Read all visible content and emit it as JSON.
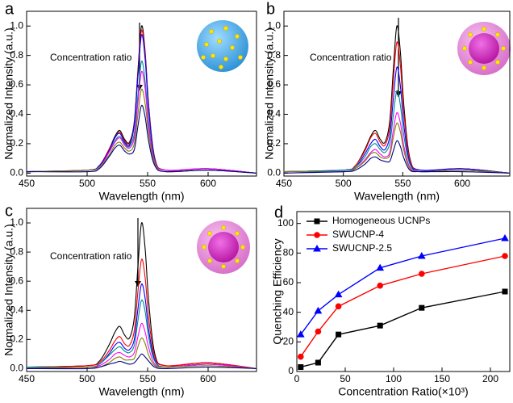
{
  "chart_data": [
    {
      "type": "line",
      "panel_label": "a",
      "x_label": "Wavelength (nm)",
      "y_label": "Normalized Intensity (a.u.)",
      "annotation": "Concentration ratio",
      "xlim": [
        450,
        640
      ],
      "ylim": [
        -0.02,
        1.1
      ],
      "xticks": [
        450,
        500,
        550,
        600
      ],
      "yticks": [
        {
          "value": 0,
          "label": "0.0"
        },
        0.2,
        0.4,
        0.6,
        0.8,
        {
          "value": 1,
          "label": "1.0"
        }
      ],
      "x": [
        450,
        500,
        510,
        518,
        523,
        527,
        531,
        535,
        539,
        542,
        545,
        548,
        551,
        556,
        565,
        600,
        640
      ],
      "series": [
        {
          "color": "#000000",
          "values": [
            0.01,
            0.02,
            0.05,
            0.16,
            0.25,
            0.29,
            0.23,
            0.21,
            0.35,
            0.7,
            1.0,
            0.82,
            0.45,
            0.1,
            0.02,
            0.03,
            0.0
          ]
        },
        {
          "color": "#ff0000",
          "values": [
            0.01,
            0.02,
            0.05,
            0.16,
            0.24,
            0.28,
            0.22,
            0.2,
            0.34,
            0.68,
            0.97,
            0.8,
            0.44,
            0.1,
            0.02,
            0.03,
            0.0
          ]
        },
        {
          "color": "#0000ff",
          "values": [
            0.01,
            0.02,
            0.05,
            0.15,
            0.24,
            0.27,
            0.21,
            0.19,
            0.33,
            0.66,
            0.94,
            0.77,
            0.42,
            0.09,
            0.02,
            0.03,
            0.0
          ]
        },
        {
          "color": "#008b8b",
          "values": [
            0.01,
            0.02,
            0.04,
            0.14,
            0.22,
            0.25,
            0.2,
            0.18,
            0.27,
            0.53,
            0.76,
            0.62,
            0.34,
            0.08,
            0.02,
            0.03,
            0.0
          ]
        },
        {
          "color": "#ff00ff",
          "values": [
            0.01,
            0.02,
            0.04,
            0.14,
            0.21,
            0.24,
            0.19,
            0.17,
            0.24,
            0.48,
            0.69,
            0.57,
            0.31,
            0.07,
            0.02,
            0.03,
            0.0
          ]
        },
        {
          "color": "#808000",
          "values": [
            0.01,
            0.02,
            0.04,
            0.12,
            0.19,
            0.21,
            0.17,
            0.15,
            0.2,
            0.4,
            0.57,
            0.47,
            0.26,
            0.06,
            0.01,
            0.02,
            0.0
          ]
        },
        {
          "color": "#000080",
          "values": [
            0.01,
            0.01,
            0.03,
            0.11,
            0.17,
            0.19,
            0.15,
            0.13,
            0.16,
            0.32,
            0.46,
            0.38,
            0.21,
            0.05,
            0.01,
            0.02,
            0.0
          ]
        }
      ]
    },
    {
      "type": "line",
      "panel_label": "b",
      "x_label": "Wavelength (nm)",
      "y_label": "Normalized Intensity (a.u.)",
      "annotation": "Concentration ratio",
      "xlim": [
        450,
        640
      ],
      "ylim": [
        -0.02,
        1.1
      ],
      "xticks": [
        450,
        500,
        550,
        600
      ],
      "yticks": [
        {
          "value": 0,
          "label": "0.0"
        },
        0.2,
        0.4,
        0.6,
        0.8,
        {
          "value": 1,
          "label": "1.0"
        }
      ],
      "x": [
        450,
        500,
        510,
        518,
        523,
        527,
        531,
        535,
        539,
        542,
        545,
        548,
        551,
        556,
        565,
        600,
        640
      ],
      "series": [
        {
          "color": "#000000",
          "values": [
            0.01,
            0.02,
            0.05,
            0.16,
            0.25,
            0.29,
            0.23,
            0.21,
            0.35,
            0.7,
            1.0,
            0.82,
            0.45,
            0.1,
            0.02,
            0.03,
            0.0
          ]
        },
        {
          "color": "#ff0000",
          "values": [
            0.01,
            0.02,
            0.05,
            0.15,
            0.24,
            0.27,
            0.21,
            0.19,
            0.31,
            0.62,
            0.89,
            0.73,
            0.4,
            0.09,
            0.02,
            0.03,
            0.0
          ]
        },
        {
          "color": "#0000ff",
          "values": [
            0.01,
            0.02,
            0.04,
            0.13,
            0.2,
            0.23,
            0.18,
            0.16,
            0.25,
            0.5,
            0.72,
            0.59,
            0.32,
            0.07,
            0.02,
            0.03,
            0.0
          ]
        },
        {
          "color": "#008b8b",
          "values": [
            0.01,
            0.02,
            0.04,
            0.11,
            0.18,
            0.2,
            0.16,
            0.14,
            0.2,
            0.39,
            0.56,
            0.46,
            0.25,
            0.06,
            0.01,
            0.02,
            0.0
          ]
        },
        {
          "color": "#ff00ff",
          "values": [
            0.01,
            0.01,
            0.03,
            0.09,
            0.14,
            0.16,
            0.13,
            0.11,
            0.14,
            0.29,
            0.41,
            0.34,
            0.18,
            0.04,
            0.01,
            0.02,
            0.0
          ]
        },
        {
          "color": "#808000",
          "values": [
            0.01,
            0.01,
            0.03,
            0.08,
            0.13,
            0.14,
            0.11,
            0.1,
            0.12,
            0.24,
            0.34,
            0.28,
            0.15,
            0.03,
            0.01,
            0.02,
            0.0
          ]
        },
        {
          "color": "#000080",
          "values": [
            0.0,
            0.01,
            0.02,
            0.06,
            0.1,
            0.11,
            0.09,
            0.08,
            0.08,
            0.15,
            0.22,
            0.18,
            0.1,
            0.02,
            0.01,
            0.01,
            0.0
          ]
        }
      ]
    },
    {
      "type": "line",
      "panel_label": "c",
      "x_label": "Wavelength (nm)",
      "y_label": "Normalized Intensity (a.u.)",
      "annotation": "Concentration ratio",
      "xlim": [
        450,
        640
      ],
      "ylim": [
        -0.02,
        1.1
      ],
      "xticks": [
        450,
        500,
        550,
        600
      ],
      "yticks": [
        {
          "value": 0,
          "label": "0.0"
        },
        0.2,
        0.4,
        0.6,
        0.8,
        {
          "value": 1,
          "label": "1.0"
        }
      ],
      "x": [
        450,
        500,
        510,
        518,
        523,
        527,
        531,
        535,
        539,
        542,
        545,
        548,
        551,
        556,
        565,
        600,
        640
      ],
      "series": [
        {
          "color": "#000000",
          "values": [
            0.01,
            0.02,
            0.05,
            0.16,
            0.25,
            0.29,
            0.23,
            0.21,
            0.35,
            0.7,
            1.0,
            0.82,
            0.45,
            0.1,
            0.02,
            0.04,
            0.0
          ]
        },
        {
          "color": "#ff0000",
          "values": [
            0.01,
            0.02,
            0.04,
            0.12,
            0.19,
            0.22,
            0.17,
            0.16,
            0.26,
            0.53,
            0.75,
            0.62,
            0.34,
            0.08,
            0.02,
            0.04,
            0.0
          ]
        },
        {
          "color": "#0000ff",
          "values": [
            0.01,
            0.01,
            0.03,
            0.1,
            0.16,
            0.18,
            0.14,
            0.13,
            0.2,
            0.41,
            0.58,
            0.48,
            0.26,
            0.06,
            0.01,
            0.03,
            0.0
          ]
        },
        {
          "color": "#008b8b",
          "values": [
            0.01,
            0.01,
            0.03,
            0.09,
            0.13,
            0.15,
            0.12,
            0.11,
            0.16,
            0.33,
            0.47,
            0.39,
            0.21,
            0.05,
            0.01,
            0.03,
            0.0
          ]
        },
        {
          "color": "#ff00ff",
          "values": [
            0.0,
            0.01,
            0.02,
            0.06,
            0.1,
            0.11,
            0.09,
            0.08,
            0.11,
            0.22,
            0.31,
            0.25,
            0.14,
            0.03,
            0.01,
            0.03,
            0.0
          ]
        },
        {
          "color": "#808000",
          "values": [
            0.0,
            0.01,
            0.01,
            0.04,
            0.07,
            0.08,
            0.06,
            0.06,
            0.07,
            0.15,
            0.21,
            0.17,
            0.09,
            0.02,
            0.01,
            0.02,
            0.0
          ]
        },
        {
          "color": "#000080",
          "values": [
            0.0,
            0.0,
            0.01,
            0.03,
            0.04,
            0.05,
            0.04,
            0.03,
            0.04,
            0.07,
            0.1,
            0.08,
            0.05,
            0.01,
            0.0,
            0.01,
            0.0
          ]
        }
      ]
    },
    {
      "type": "line",
      "panel_label": "d",
      "x_label": "Concentration Ratio(×10³)",
      "y_label": "Quenching Efficiency",
      "xlim": [
        0,
        220
      ],
      "ylim": [
        0,
        108
      ],
      "xticks": [
        0,
        50,
        100,
        150,
        200
      ],
      "yticks": [
        0,
        20,
        40,
        60,
        80,
        100
      ],
      "legend": "upper left",
      "x": [
        4,
        22,
        43,
        86,
        129,
        215
      ],
      "series": [
        {
          "name": "Homogeneous UCNPs",
          "color": "#000000",
          "marker": "square",
          "values": [
            3,
            6,
            25,
            31,
            43,
            54
          ]
        },
        {
          "name": "SWUCNP-4",
          "color": "#ff0000",
          "marker": "circle",
          "values": [
            10,
            27,
            44,
            58,
            66,
            78
          ]
        },
        {
          "name": "SWUCNP-2.5",
          "color": "#0000ff",
          "marker": "triangle",
          "values": [
            25,
            41,
            52,
            70,
            78,
            90
          ]
        }
      ]
    }
  ]
}
